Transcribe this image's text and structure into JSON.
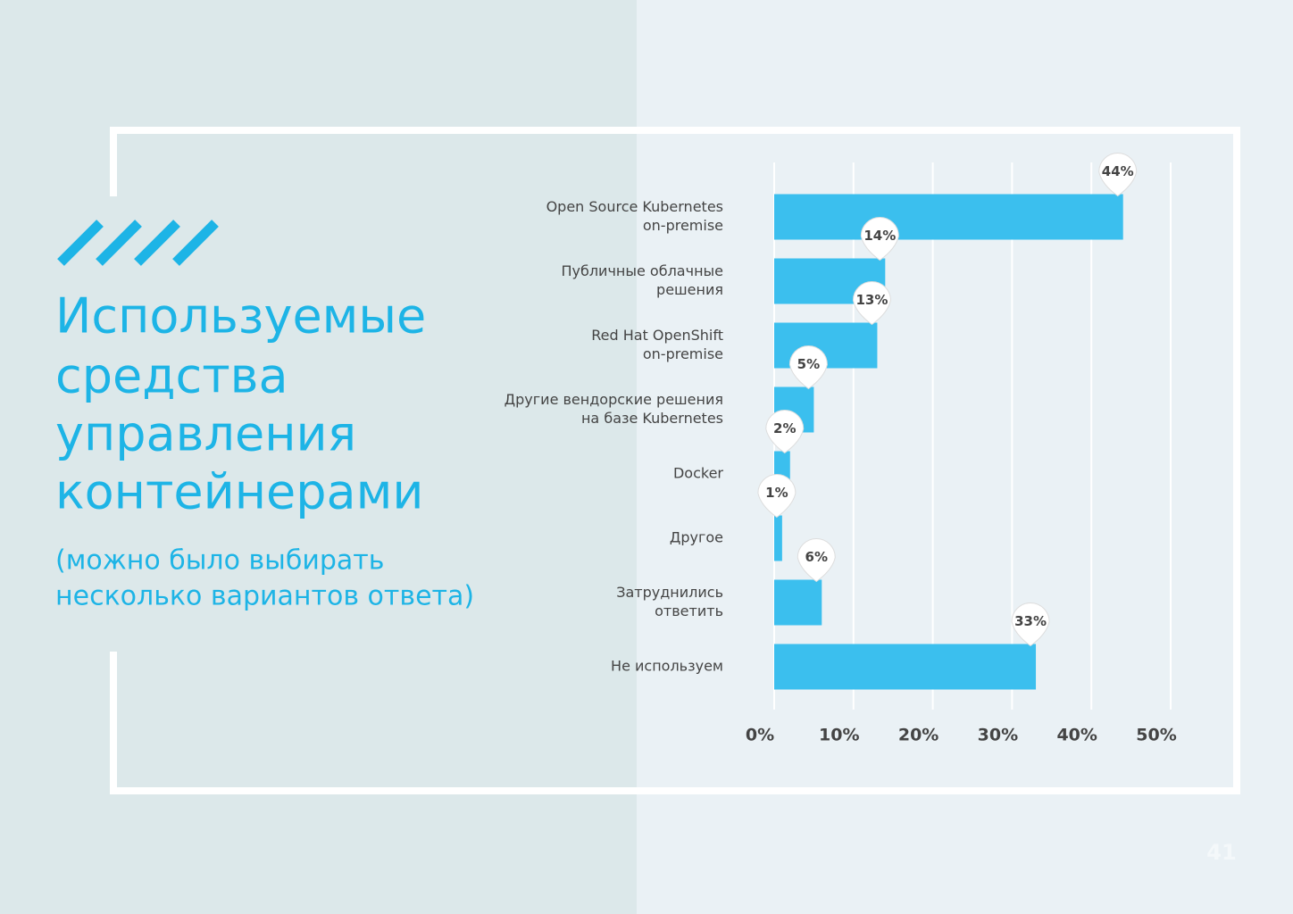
{
  "slide": {
    "title": [
      "Используемые",
      "средства",
      "управления",
      "контейнерами"
    ],
    "subtitle": [
      "(можно было выбирать",
      "несколько вариантов ответа)"
    ],
    "page_number": "41"
  },
  "chart_data": {
    "type": "barh",
    "categories": [
      [
        "Open Source Kubernetes",
        "on-premise"
      ],
      [
        "Публичные облачные",
        "решения"
      ],
      [
        "Red Hat OpenShift",
        "on-premise"
      ],
      [
        "Другие вендорские решения",
        "на базе Kubernetes"
      ],
      [
        "Docker"
      ],
      [
        "Другое"
      ],
      [
        "Затруднились",
        "ответить"
      ],
      [
        "Не используем"
      ]
    ],
    "values": [
      44,
      14,
      13,
      5,
      2,
      1,
      6,
      33
    ],
    "value_labels": [
      "44%",
      "14%",
      "13%",
      "5%",
      "2%",
      "1%",
      "6%",
      "33%"
    ],
    "color": "#3bbfee",
    "xlim": [
      0,
      50
    ],
    "xticks": [
      {
        "value": 0,
        "label": "0%"
      },
      {
        "value": 10,
        "label": "10%"
      },
      {
        "value": 20,
        "label": "20%"
      },
      {
        "value": 30,
        "label": "30%"
      },
      {
        "value": 40,
        "label": "40%"
      },
      {
        "value": 50,
        "label": "50%"
      }
    ],
    "grid": true
  }
}
